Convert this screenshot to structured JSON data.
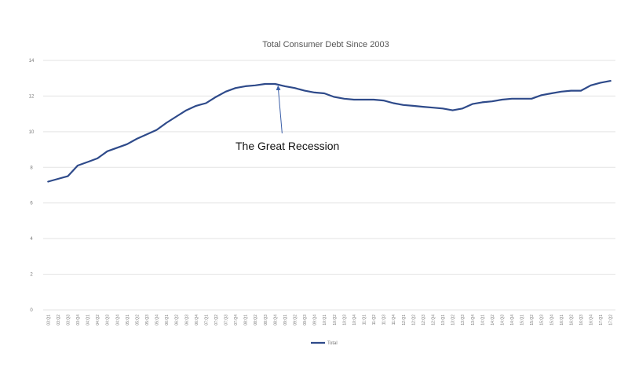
{
  "chart_data": {
    "type": "line",
    "title": "Total Consumer Debt Since 2003",
    "xlabel": "",
    "ylabel": "",
    "ylim": [
      0,
      14
    ],
    "yticks": [
      "0",
      "2",
      "4",
      "6",
      "8",
      "10",
      "12",
      "14"
    ],
    "grid": true,
    "legend_position": "bottom",
    "categories": [
      "03:Q1",
      "03:Q2",
      "03:Q3",
      "03:Q4",
      "04:Q1",
      "04:Q2",
      "04:Q3",
      "04:Q4",
      "05:Q1",
      "05:Q2",
      "05:Q3",
      "05:Q4",
      "06:Q1",
      "06:Q2",
      "06:Q3",
      "06:Q4",
      "07:Q1",
      "07:Q2",
      "07:Q3",
      "07:Q4",
      "08:Q1",
      "08:Q2",
      "08:Q3",
      "08:Q4",
      "09:Q1",
      "09:Q2",
      "09:Q3",
      "09:Q4",
      "10:Q1",
      "10:Q2",
      "10:Q3",
      "10:Q4",
      "11:Q1",
      "11:Q2",
      "11:Q3",
      "11:Q4",
      "12:Q1",
      "12:Q2",
      "12:Q3",
      "12:Q4",
      "13:Q1",
      "13:Q2",
      "13:Q3",
      "13:Q4",
      "14:Q1",
      "14:Q2",
      "14:Q3",
      "14:Q4",
      "15:Q1",
      "15:Q2",
      "15:Q3",
      "15:Q4",
      "16:Q1",
      "16:Q2",
      "16:Q3",
      "16:Q4",
      "17:Q1",
      "17:Q2"
    ],
    "series": [
      {
        "name": "Total",
        "color": "#2e4a8a",
        "values": [
          7.2,
          7.35,
          7.5,
          8.1,
          8.3,
          8.5,
          8.9,
          9.1,
          9.3,
          9.6,
          9.85,
          10.1,
          10.5,
          10.85,
          11.2,
          11.45,
          11.6,
          11.95,
          12.25,
          12.45,
          12.55,
          12.6,
          12.68,
          12.68,
          12.55,
          12.45,
          12.3,
          12.2,
          12.15,
          11.95,
          11.85,
          11.8,
          11.8,
          11.8,
          11.75,
          11.6,
          11.5,
          11.45,
          11.4,
          11.35,
          11.3,
          11.2,
          11.3,
          11.55,
          11.65,
          11.7,
          11.8,
          11.85,
          11.85,
          11.85,
          12.05,
          12.15,
          12.25,
          12.3,
          12.3,
          12.6,
          12.75,
          12.85
        ]
      }
    ],
    "annotations": [
      {
        "text": "The Great Recession",
        "target_category": "08:Q4",
        "target_value": 12.68
      }
    ]
  }
}
